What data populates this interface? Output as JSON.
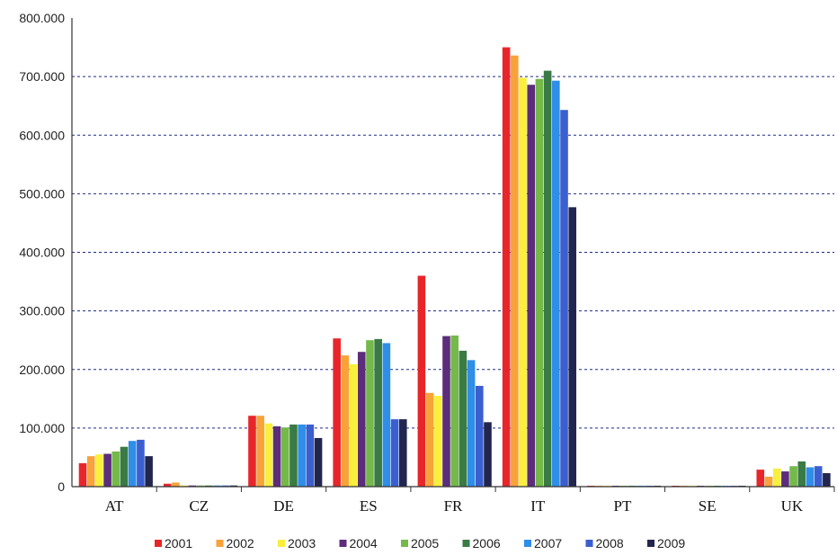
{
  "chart_data": {
    "type": "bar",
    "title": "",
    "xlabel": "",
    "ylabel": "",
    "ylim": [
      0,
      800000
    ],
    "y_ticks": [
      "0",
      "100.000",
      "200.000",
      "300.000",
      "400.000",
      "500.000",
      "600.000",
      "700.000",
      "800.000"
    ],
    "grid": true,
    "legend_position": "bottom",
    "categories": [
      "AT",
      "CZ",
      "DE",
      "ES",
      "FR",
      "IT",
      "PT",
      "SE",
      "UK"
    ],
    "series": [
      {
        "name": "2001",
        "color": "#e8262a",
        "values": [
          40000,
          5000,
          121000,
          253000,
          360000,
          750000,
          1500,
          1500,
          29000
        ]
      },
      {
        "name": "2002",
        "color": "#f7a33a",
        "values": [
          52000,
          7000,
          121000,
          224000,
          160000,
          736000,
          1500,
          1500,
          17000
        ]
      },
      {
        "name": "2003",
        "color": "#f9ef3c",
        "values": [
          55000,
          2000,
          108000,
          209000,
          155000,
          698000,
          1500,
          1500,
          31000
        ]
      },
      {
        "name": "2004",
        "color": "#5b2d7a",
        "values": [
          56000,
          2000,
          103000,
          230000,
          257000,
          686000,
          1500,
          1500,
          26000
        ]
      },
      {
        "name": "2005",
        "color": "#74b94a",
        "values": [
          60000,
          2000,
          101000,
          250000,
          258000,
          696000,
          1500,
          1500,
          35000
        ]
      },
      {
        "name": "2006",
        "color": "#3a7a45",
        "values": [
          68000,
          2000,
          106000,
          252000,
          232000,
          710000,
          1500,
          1500,
          43000
        ]
      },
      {
        "name": "2007",
        "color": "#2f8ee8",
        "values": [
          78000,
          2000,
          106000,
          245000,
          216000,
          693000,
          1500,
          1500,
          33000
        ]
      },
      {
        "name": "2008",
        "color": "#3b5fcf",
        "values": [
          80000,
          2000,
          106000,
          115000,
          172000,
          643000,
          1500,
          1500,
          35000
        ]
      },
      {
        "name": "2009",
        "color": "#22264e",
        "values": [
          52000,
          2000,
          83000,
          115000,
          110000,
          477000,
          1500,
          1500,
          23000
        ]
      }
    ]
  }
}
